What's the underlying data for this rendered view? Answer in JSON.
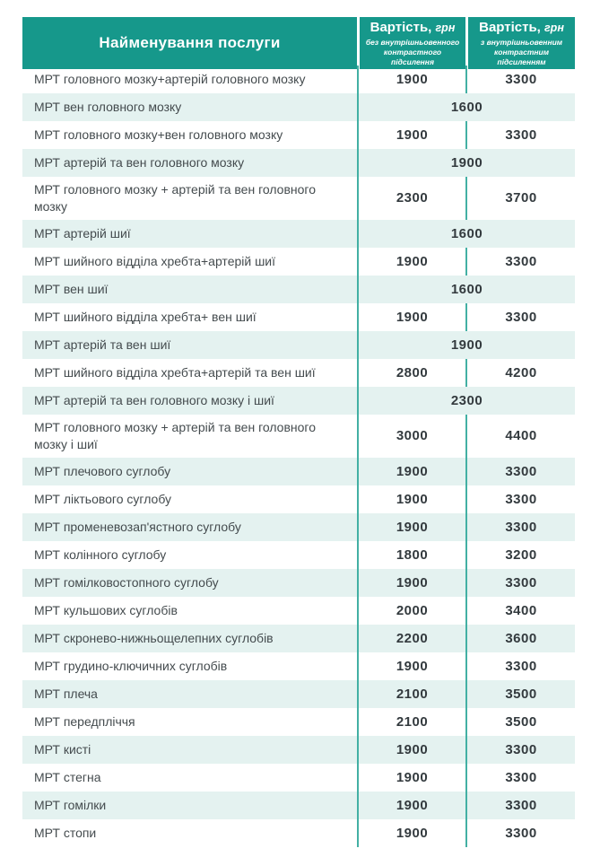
{
  "header": {
    "service": "Найменування послуги",
    "col_without": {
      "title": "Вартість,",
      "unit": "грн",
      "subtitle": "без внутрішньовенного контрастного підсилення"
    },
    "col_with": {
      "title": "Вартість,",
      "unit": "грн",
      "subtitle": "з внутрішньовенним контрастним підсиленням"
    }
  },
  "colors": {
    "header_teal": "#16988b",
    "row_tint": "#e4f2f0",
    "divider_teal": "#43b0a4",
    "text_dark": "#444b4e"
  },
  "rows": [
    {
      "name": "МРТ головного мозку+артерій головного мозку",
      "without": "1900",
      "with": "3300"
    },
    {
      "name": "МРТ вен головного мозку",
      "merged": "1600"
    },
    {
      "name": "МРТ головного мозку+вен головного мозку",
      "without": "1900",
      "with": "3300"
    },
    {
      "name": "МРТ артерій та вен головного мозку",
      "merged": "1900"
    },
    {
      "name": "МРТ головного мозку + артерій та вен головного мозку",
      "without": "2300",
      "with": "3700"
    },
    {
      "name": "МРТ артерій шиї",
      "merged": "1600"
    },
    {
      "name": "МРТ шийного відділа хребта+артерій шиї",
      "without": "1900",
      "with": "3300"
    },
    {
      "name": "МРТ вен шиї",
      "merged": "1600"
    },
    {
      "name": "МРТ шийного відділа хребта+ вен шиї",
      "without": "1900",
      "with": "3300"
    },
    {
      "name": "МРТ артерій та вен шиї",
      "merged": "1900"
    },
    {
      "name": "МРТ шийного відділа хребта+артерій та вен шиї",
      "without": "2800",
      "with": "4200"
    },
    {
      "name": "МРТ артерій та вен головного мозку і шиї",
      "merged": "2300"
    },
    {
      "name": "МРТ головного мозку + артерій та вен головного мозку і шиї",
      "without": "3000",
      "with": "4400"
    },
    {
      "name": "МРТ плечового суглобу",
      "without": "1900",
      "with": "3300"
    },
    {
      "name": "МРТ ліктьового суглобу",
      "without": "1900",
      "with": "3300"
    },
    {
      "name": "МРТ променевозап'ястного суглобу",
      "without": "1900",
      "with": "3300"
    },
    {
      "name": "МРТ колінного суглобу",
      "without": "1800",
      "with": "3200"
    },
    {
      "name": "МРТ гомілковостопного суглобу",
      "without": "1900",
      "with": "3300"
    },
    {
      "name": "МРТ кульшових суглобів",
      "without": "2000",
      "with": "3400"
    },
    {
      "name": "МРТ скронево-нижньощелепних суглобів",
      "without": "2200",
      "with": "3600"
    },
    {
      "name": "МРТ грудино-ключичних суглобів",
      "without": "1900",
      "with": "3300"
    },
    {
      "name": "МРТ плеча",
      "without": "2100",
      "with": "3500"
    },
    {
      "name": "МРТ передпліччя",
      "without": "2100",
      "with": "3500"
    },
    {
      "name": "МРТ кисті",
      "without": "1900",
      "with": "3300"
    },
    {
      "name": "МРТ стегна",
      "without": "1900",
      "with": "3300"
    },
    {
      "name": "МРТ гомілки",
      "without": "1900",
      "with": "3300"
    },
    {
      "name": "МРТ стопи",
      "without": "1900",
      "with": "3300"
    }
  ]
}
